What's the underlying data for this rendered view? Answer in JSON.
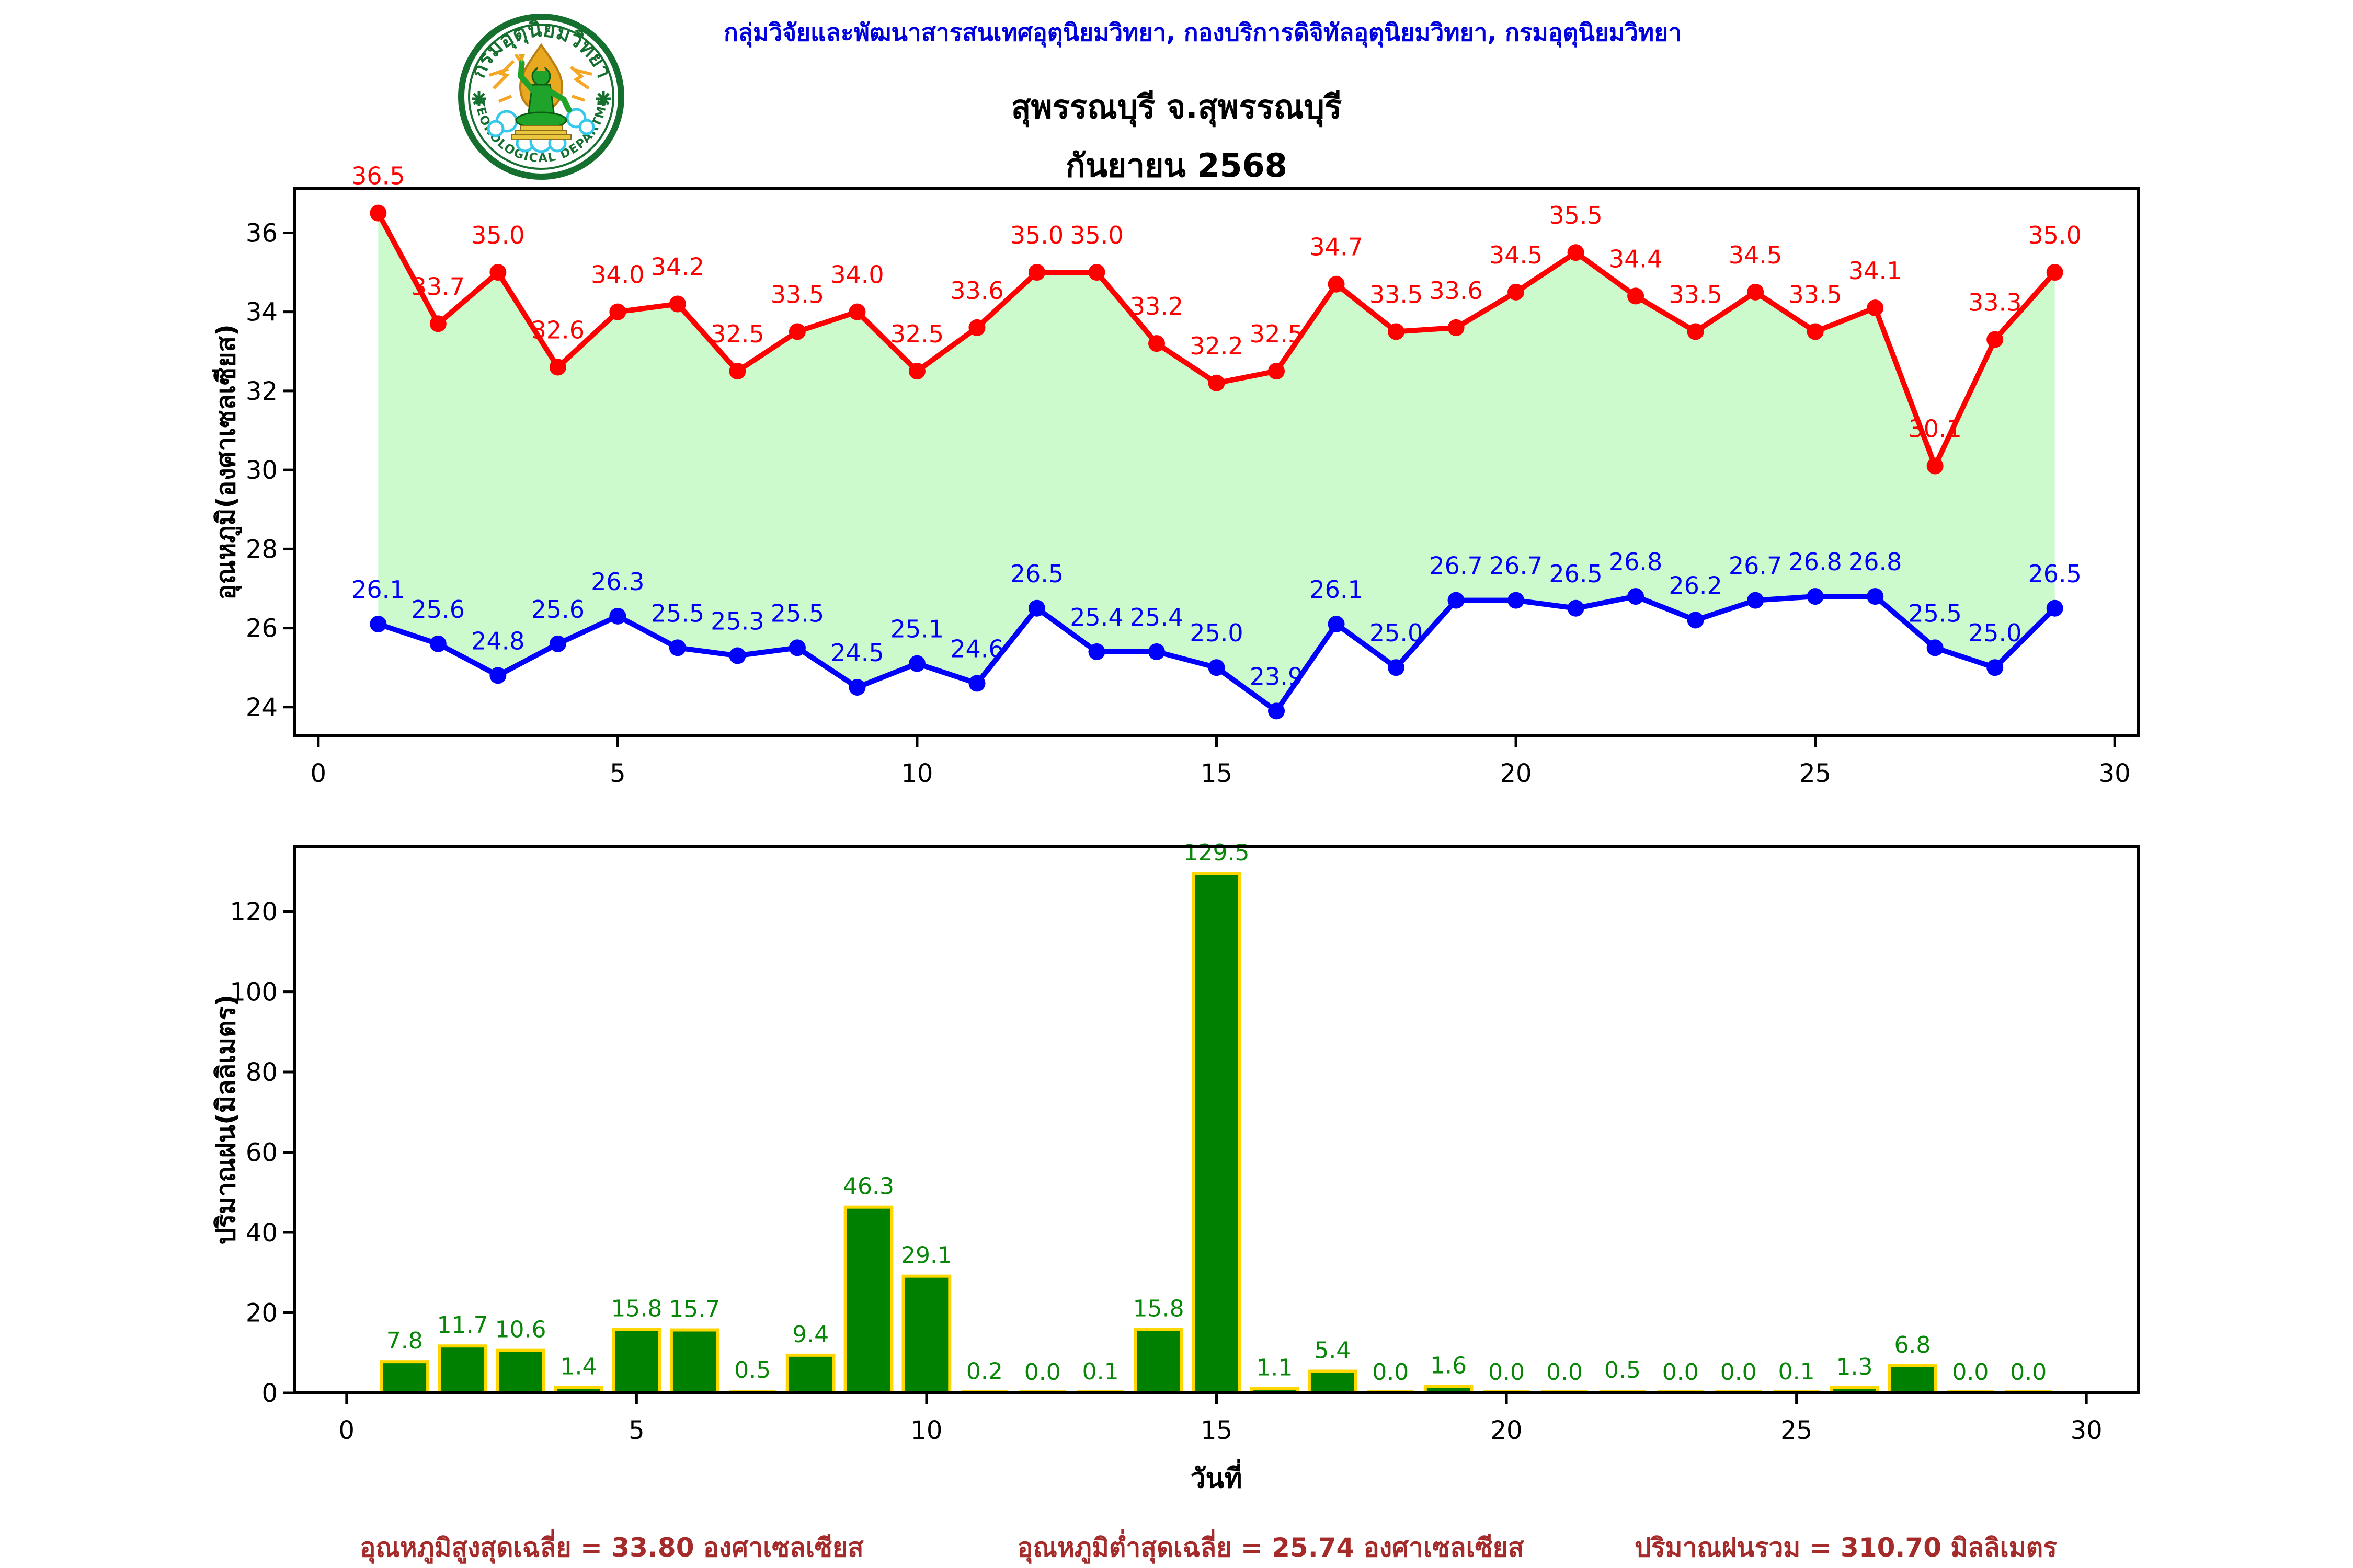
{
  "header": {
    "org_line": "กลุ่มวิจัยและพัฒนาสารสนเทศอุตุนิยมวิทยา, กองบริการดิจิทัลอุตุนิยมวิทยา, กรมอุตุนิยมวิทยา",
    "org_color": "#0000dd",
    "title_line1": "สุพรรณบุรี จ.สุพรรณบุรี",
    "title_line2": "กันยายน 2568",
    "title_color": "#000000"
  },
  "logo": {
    "arc_top": "กรมอุตุนิยมวิทยา",
    "arc_bottom": "METEOROLOGICAL DEPARTMENT",
    "ring_color": "#156f2e",
    "figure_color": "#1fa32a",
    "gold_color": "#e8a81f",
    "cloud_color": "#35c8ea",
    "ray_color": "#f5a623"
  },
  "chart_data": [
    {
      "type": "line",
      "name": "temperature",
      "title": "สุพรรณบุรี จ.สุพรรณบุรี กันยายน 2568",
      "ylabel": "อุณหภูมิ(องศาเซลเซียส)",
      "x": [
        1,
        2,
        3,
        4,
        5,
        6,
        7,
        8,
        9,
        10,
        11,
        12,
        13,
        14,
        15,
        16,
        17,
        18,
        19,
        20,
        21,
        22,
        23,
        24,
        25,
        26,
        27,
        28,
        29
      ],
      "series": [
        {
          "name": "max-temperature",
          "color": "#ff0000",
          "values": [
            36.5,
            33.7,
            35.0,
            32.6,
            34.0,
            34.2,
            32.5,
            33.5,
            34.0,
            32.5,
            33.6,
            35.0,
            35.0,
            33.2,
            32.2,
            32.5,
            34.7,
            33.5,
            33.6,
            34.5,
            35.5,
            34.4,
            33.5,
            34.5,
            33.5,
            34.1,
            30.1,
            33.3,
            35.0
          ]
        },
        {
          "name": "min-temperature",
          "color": "#0000ff",
          "values": [
            26.1,
            25.6,
            24.8,
            25.6,
            26.3,
            25.5,
            25.3,
            25.5,
            24.5,
            25.1,
            24.6,
            26.5,
            25.4,
            25.4,
            25.0,
            23.9,
            26.1,
            25.0,
            26.7,
            26.7,
            26.5,
            26.8,
            26.2,
            26.7,
            26.8,
            26.8,
            25.5,
            25.0,
            26.5
          ]
        }
      ],
      "fill_between_color": "#cdfacd",
      "xlim": [
        -0.4,
        30.4
      ],
      "ylim": [
        23.27,
        37.13
      ],
      "xticks": [
        0,
        5,
        10,
        15,
        20,
        25,
        30
      ],
      "yticks": [
        24,
        26,
        28,
        30,
        32,
        34,
        36
      ],
      "grid": false,
      "legend_position": "none"
    },
    {
      "type": "bar",
      "name": "rainfall",
      "ylabel": "ปริมาณฝน(มิลลิเมตร)",
      "xlabel": "วันที่",
      "x": [
        1,
        2,
        3,
        4,
        5,
        6,
        7,
        8,
        9,
        10,
        11,
        12,
        13,
        14,
        15,
        16,
        17,
        18,
        19,
        20,
        21,
        22,
        23,
        24,
        25,
        26,
        27,
        28,
        29
      ],
      "values": [
        7.8,
        11.7,
        10.6,
        1.4,
        15.8,
        15.7,
        0.5,
        9.4,
        46.3,
        29.1,
        0.2,
        0.0,
        0.1,
        15.8,
        129.5,
        1.1,
        5.4,
        0.0,
        1.6,
        0.0,
        0.0,
        0.5,
        0.0,
        0.0,
        0.1,
        1.3,
        6.8,
        0.0,
        0.0
      ],
      "bar_color": "#008000",
      "bar_edge_color": "#ffd700",
      "label_color": "#078607",
      "xlim": [
        -0.9,
        30.9
      ],
      "ylim": [
        0,
        136.3
      ],
      "xticks": [
        0,
        5,
        10,
        15,
        20,
        25,
        30
      ],
      "yticks": [
        0,
        20,
        40,
        60,
        80,
        100,
        120
      ],
      "grid": false,
      "legend_position": "none"
    }
  ],
  "footer": {
    "avg_max_label": "อุณหภูมิสูงสุดเฉลี่ย = 33.80 องศาเซลเซียส",
    "avg_min_label": "อุณหภูมิต่ำสุดเฉลี่ย = 25.74 องศาเซลเซียส",
    "total_rain_label": "ปริมาณฝนรวม = 310.70 มิลลิเมตร",
    "color": "#a52a2a"
  }
}
